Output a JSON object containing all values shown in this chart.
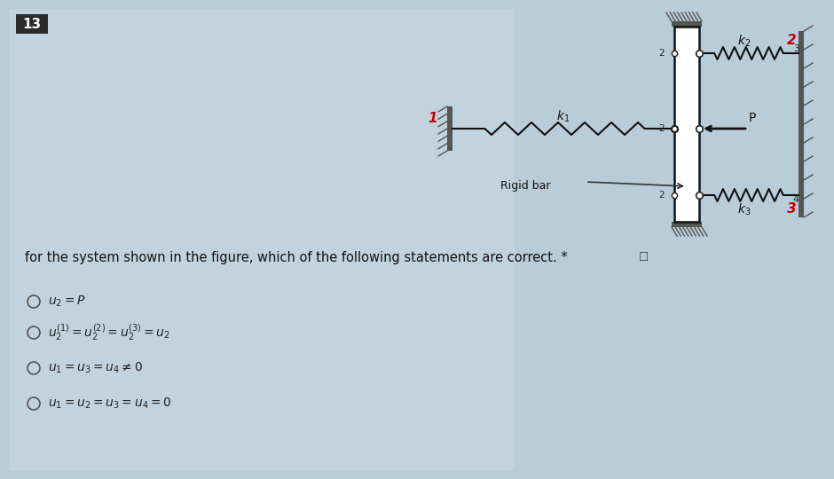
{
  "bg_color": "#b8cdd8",
  "panel_color": "#c8d8e4",
  "white_panel": "#d0dde6",
  "question_num": "13",
  "qnum_bg": "#2a2a2a",
  "qnum_fg": "#ffffff",
  "question_text": "for the system shown in the figure, which of the following statements are correct. *",
  "diagram_line_color": "#111111",
  "hatch_color": "#666666",
  "node_color": "#ffffff",
  "red_label_color": "#cc0000"
}
